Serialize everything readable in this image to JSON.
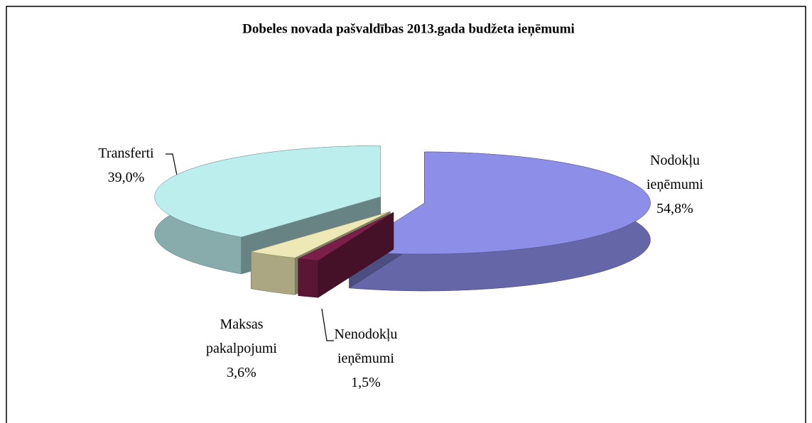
{
  "chart_data": {
    "type": "pie3d",
    "title": "Dobeles novada pašvaldības 2013.gada budžeta ieņēmumi",
    "categories": [
      "Nodokļu ieņēmumi",
      "Nenodokļu ieņēmumi",
      "Maksas pakalpojumi",
      "Transferti"
    ],
    "values": [
      54.8,
      1.5,
      3.6,
      39.0
    ],
    "value_labels": [
      "54,8%",
      "1,5%",
      "3,6%",
      "39,0%"
    ],
    "colors": [
      "#8c8ee8",
      "#7b1f4a",
      "#ede8b6",
      "#bdeeee"
    ]
  }
}
